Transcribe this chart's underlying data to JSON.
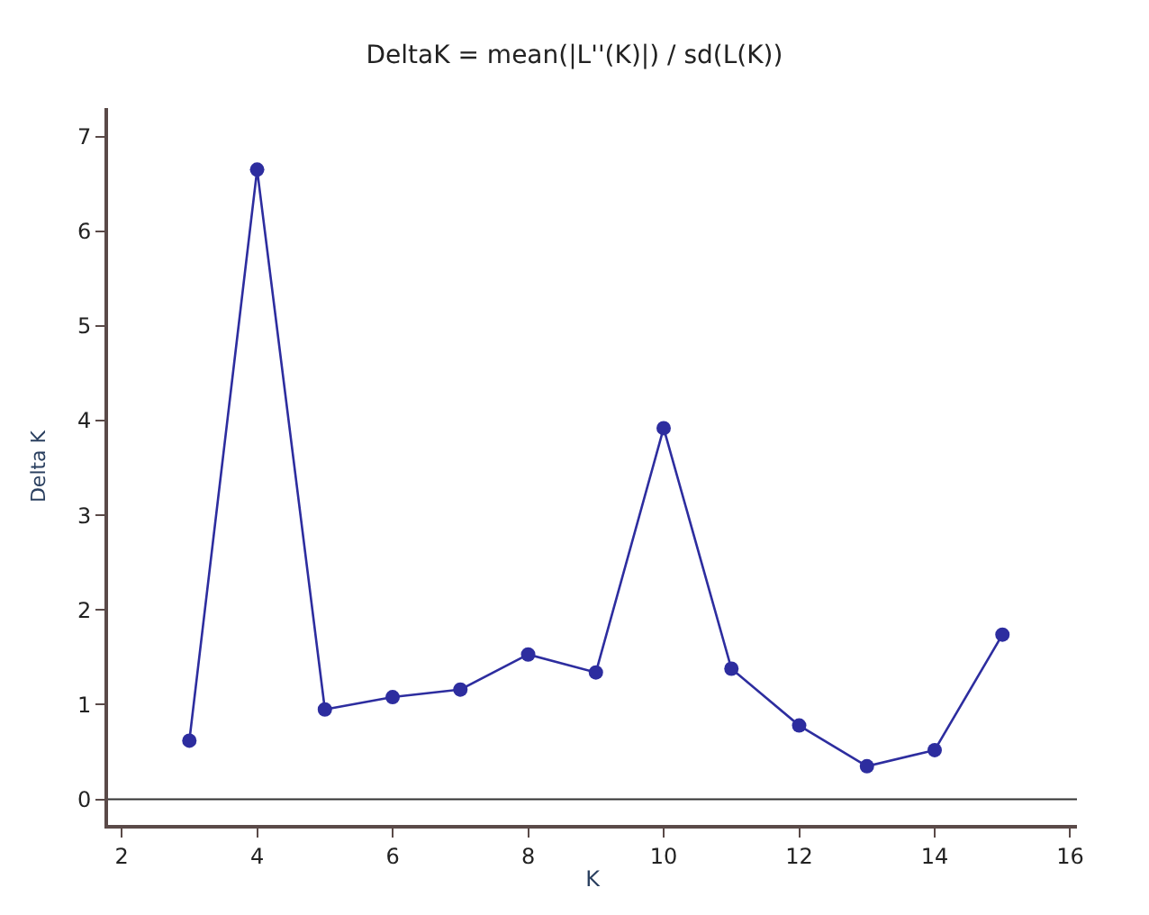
{
  "chart_data": {
    "type": "line",
    "title": "DeltaK = mean(|L''(K)|) / sd(L(K))",
    "xlabel": "K",
    "ylabel": "Delta K",
    "x": [
      3,
      4,
      5,
      6,
      7,
      8,
      9,
      10,
      11,
      12,
      13,
      14,
      15
    ],
    "series": [
      {
        "color": "#2d2d9f",
        "values": [
          0.62,
          6.65,
          0.95,
          1.08,
          1.16,
          1.53,
          1.34,
          3.92,
          1.38,
          0.78,
          0.35,
          0.52,
          1.74
        ]
      }
    ],
    "xlim": [
      1.8,
      16.1
    ],
    "xticks": [
      2,
      4,
      6,
      8,
      10,
      12,
      14,
      16
    ],
    "ylim": [
      -0.27,
      7.3
    ],
    "yticks": [
      0,
      1,
      2,
      3,
      4,
      5,
      6,
      7
    ],
    "ref_lines": [
      {
        "axis": "y",
        "value": 0,
        "color": "#333333"
      }
    ],
    "marker": "circle",
    "line_style": "solid",
    "grid": false
  }
}
